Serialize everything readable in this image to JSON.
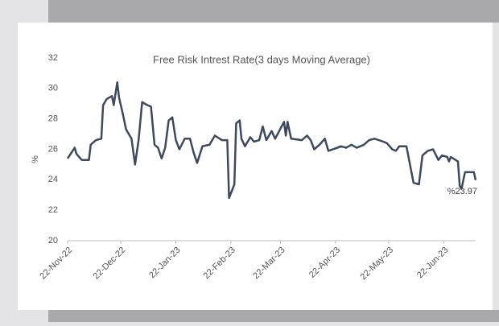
{
  "chart_data": {
    "type": "line",
    "title": "Free Risk Intrest Rate(3 days Moving Average)",
    "ylabel": "%",
    "annotation": "%23.97",
    "x": [
      "2022-11-22",
      "2022-11-26",
      "2022-11-27",
      "2022-11-30",
      "2022-12-04",
      "2022-12-05",
      "2022-12-08",
      "2022-12-11",
      "2022-12-12",
      "2022-12-14",
      "2022-12-17",
      "2022-12-18",
      "2022-12-20",
      "2022-12-21",
      "2022-12-23",
      "2022-12-25",
      "2022-12-28",
      "2022-12-30",
      "2023-01-01",
      "2023-01-03",
      "2023-01-06",
      "2023-01-08",
      "2023-01-10",
      "2023-01-12",
      "2023-01-14",
      "2023-01-16",
      "2023-01-18",
      "2023-01-20",
      "2023-01-22",
      "2023-01-24",
      "2023-01-27",
      "2023-01-30",
      "2023-02-01",
      "2023-02-03",
      "2023-02-06",
      "2023-02-10",
      "2023-02-13",
      "2023-02-17",
      "2023-02-20",
      "2023-02-21",
      "2023-02-24",
      "2023-02-25",
      "2023-02-27",
      "2023-02-28",
      "2023-03-02",
      "2023-03-05",
      "2023-03-07",
      "2023-03-10",
      "2023-03-12",
      "2023-03-14",
      "2023-03-17",
      "2023-03-19",
      "2023-03-24",
      "2023-03-25",
      "2023-03-26",
      "2023-03-28",
      "2023-04-03",
      "2023-04-06",
      "2023-04-08",
      "2023-04-10",
      "2023-04-13",
      "2023-04-16",
      "2023-04-18",
      "2023-04-23",
      "2023-04-25",
      "2023-04-28",
      "2023-05-01",
      "2023-05-04",
      "2023-05-08",
      "2023-05-11",
      "2023-05-14",
      "2023-05-19",
      "2023-05-21",
      "2023-05-24",
      "2023-05-26",
      "2023-05-28",
      "2023-06-01",
      "2023-06-05",
      "2023-06-08",
      "2023-06-10",
      "2023-06-13",
      "2023-06-16",
      "2023-06-19",
      "2023-06-21",
      "2023-06-24",
      "2023-06-25",
      "2023-06-26",
      "2023-06-30",
      "2023-07-01",
      "2023-07-02",
      "2023-07-04",
      "2023-07-09",
      "2023-07-10"
    ],
    "series": [
      {
        "name": "Free Risk Intrest Rate",
        "color": "#3d4a5e",
        "values": [
          25.4,
          26.1,
          25.7,
          25.3,
          25.3,
          26.3,
          26.6,
          26.7,
          28.9,
          29.3,
          29.5,
          28.9,
          30.4,
          29.4,
          28.4,
          27.3,
          26.7,
          25.0,
          26.6,
          29.1,
          28.9,
          28.8,
          26.3,
          26.1,
          25.4,
          26.1,
          27.9,
          28.1,
          26.6,
          26.0,
          26.7,
          26.7,
          25.8,
          25.1,
          26.2,
          26.3,
          26.9,
          26.6,
          26.6,
          22.8,
          23.7,
          27.7,
          27.9,
          26.7,
          26.2,
          26.8,
          26.5,
          26.6,
          27.5,
          26.6,
          27.2,
          26.7,
          27.8,
          26.9,
          27.8,
          26.7,
          26.6,
          26.9,
          26.6,
          26.0,
          26.3,
          26.7,
          25.9,
          26.1,
          26.2,
          26.1,
          26.3,
          26.1,
          26.3,
          26.6,
          26.7,
          26.5,
          26.4,
          26.0,
          25.9,
          26.2,
          26.2,
          23.8,
          23.7,
          25.6,
          25.9,
          26.0,
          25.3,
          25.6,
          25.5,
          25.2,
          25.5,
          25.2,
          23.6,
          23.4,
          24.5,
          24.5,
          23.97
        ]
      }
    ],
    "xlim": [
      "2022-11-22",
      "2023-07-10"
    ],
    "xticks": [
      {
        "value": "2022-11-22",
        "label": "22-Nov-22"
      },
      {
        "value": "2022-12-22",
        "label": "22-Dec-22"
      },
      {
        "value": "2023-01-22",
        "label": "22-Jan-23"
      },
      {
        "value": "2023-02-22",
        "label": "22-Feb-23"
      },
      {
        "value": "2023-03-22",
        "label": "22-Mar-23"
      },
      {
        "value": "2023-04-22",
        "label": "22-Apr-23"
      },
      {
        "value": "2023-05-22",
        "label": "22-May-23"
      },
      {
        "value": "2023-06-22",
        "label": "22-Jun-23"
      }
    ],
    "ylim": [
      20,
      32
    ],
    "yticks": [
      20,
      22,
      24,
      26,
      28,
      30,
      32
    ],
    "grid": false
  }
}
